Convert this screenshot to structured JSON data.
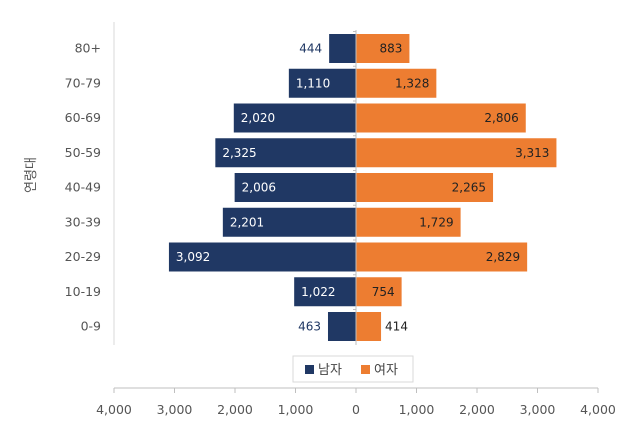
{
  "chart_data": {
    "type": "bar",
    "orientation": "horizontal-diverging",
    "ylabel": "연령대",
    "xlabel": "",
    "categories": [
      "80+",
      "70-79",
      "60-69",
      "50-59",
      "40-49",
      "30-39",
      "20-29",
      "10-19",
      "0-9"
    ],
    "series": [
      {
        "name": "남자",
        "color": "#203864",
        "direction": "left",
        "values": [
          444,
          1110,
          2020,
          2325,
          2006,
          2201,
          3092,
          1022,
          463
        ],
        "labels": [
          "444",
          "1,110",
          "2,020",
          "2,325",
          "2,006",
          "2,201",
          "3,092",
          "1,022",
          "463"
        ]
      },
      {
        "name": "여자",
        "color": "#ED7D31",
        "direction": "right",
        "values": [
          883,
          1328,
          2806,
          3313,
          2265,
          1729,
          2829,
          754,
          414
        ],
        "labels": [
          "883",
          "1,328",
          "2,806",
          "3,313",
          "2,265",
          "1,729",
          "2,829",
          "754",
          "414"
        ]
      }
    ],
    "xlim": [
      -4000,
      4000
    ],
    "xticks": [
      -4000,
      -3000,
      -2000,
      -1000,
      0,
      1000,
      2000,
      3000,
      4000
    ],
    "xtick_labels": [
      "4,000",
      "3,000",
      "2,000",
      "1,000",
      "0",
      "1,000",
      "2,000",
      "3,000",
      "4,000"
    ],
    "grid": false,
    "legend_position": "bottom-center"
  }
}
